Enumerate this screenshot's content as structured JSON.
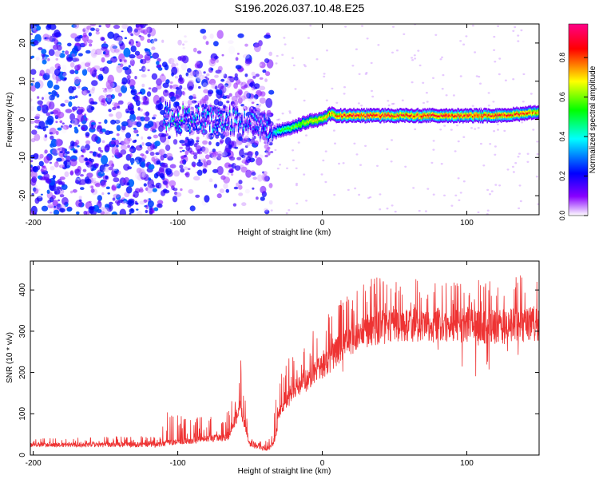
{
  "title": "S196.2026.037.10.48.E25",
  "chart_data": [
    {
      "type": "heatmap",
      "name": "spectrogram",
      "xlabel": "Height of straight line (km)",
      "ylabel": "Frequency (Hz)",
      "xlim": [
        -202,
        150
      ],
      "ylim": [
        -25,
        25
      ],
      "xticks": [
        -200,
        -100,
        0,
        100
      ],
      "yticks": [
        -20,
        -10,
        0,
        10,
        20
      ],
      "colorbar": {
        "label": "Normalized spectral amplitude",
        "range": [
          0.0,
          0.97
        ],
        "ticks": [
          0.0,
          0.2,
          0.4,
          0.6,
          0.8
        ],
        "colormap": [
          "#ffffff",
          "#8800ff",
          "#0000ff",
          "#00ffff",
          "#00ff00",
          "#ffff00",
          "#ff0000",
          "#ff00aa"
        ]
      },
      "ridge": {
        "description": "dominant frequency vs height",
        "x": [
          -110,
          -100,
          -80,
          -60,
          -45,
          -35,
          -30,
          -20,
          -10,
          0,
          5,
          10,
          20,
          40,
          60,
          80,
          100,
          120,
          140,
          150
        ],
        "y": [
          1,
          0,
          0,
          0,
          -1,
          -3.5,
          -3,
          -2,
          -0.5,
          0,
          1.5,
          1,
          1,
          1,
          1,
          1,
          1,
          1,
          1.5,
          2
        ],
        "amplitude": [
          0.3,
          0.4,
          0.3,
          0.35,
          0.25,
          0.35,
          0.55,
          0.6,
          0.7,
          0.75,
          0.8,
          0.85,
          0.9,
          0.9,
          0.88,
          0.9,
          0.88,
          0.9,
          0.85,
          0.8
        ]
      },
      "noise_regions": [
        {
          "x_range": [
            -202,
            -112
          ],
          "y_range": [
            -25,
            25
          ],
          "amplitude": [
            0.0,
            0.3
          ]
        },
        {
          "x_range": [
            -112,
            -35
          ],
          "y_range": [
            -25,
            25
          ],
          "amplitude": [
            0.0,
            0.25
          ]
        }
      ]
    },
    {
      "type": "line",
      "name": "snr",
      "color": "#ee3333",
      "xlabel": "Height of straight line (km)",
      "ylabel": "SNR (10 * v/v)",
      "xlim": [
        -202,
        150
      ],
      "ylim": [
        0,
        470
      ],
      "xticks": [
        -200,
        -100,
        0,
        100
      ],
      "yticks": [
        0,
        100,
        200,
        300,
        400
      ],
      "envelope": {
        "x": [
          -202,
          -150,
          -112,
          -108,
          -90,
          -80,
          -70,
          -65,
          -60,
          -57,
          -55,
          -52,
          -50,
          -45,
          -38,
          -35,
          -32,
          -30,
          -25,
          -20,
          -15,
          -10,
          -5,
          0,
          5,
          10,
          15,
          20,
          30,
          40,
          60,
          80,
          100,
          120,
          150
        ],
        "base": [
          25,
          25,
          25,
          30,
          35,
          40,
          40,
          45,
          80,
          120,
          90,
          50,
          25,
          20,
          15,
          20,
          50,
          100,
          130,
          150,
          170,
          185,
          200,
          215,
          230,
          250,
          270,
          280,
          300,
          310,
          315,
          315,
          315,
          310,
          320
        ],
        "peak": [
          40,
          45,
          45,
          105,
          90,
          100,
          80,
          110,
          180,
          245,
          200,
          80,
          40,
          35,
          35,
          45,
          140,
          190,
          225,
          250,
          270,
          300,
          320,
          330,
          360,
          370,
          380,
          400,
          420,
          440,
          430,
          420,
          430,
          420,
          465
        ]
      }
    }
  ]
}
